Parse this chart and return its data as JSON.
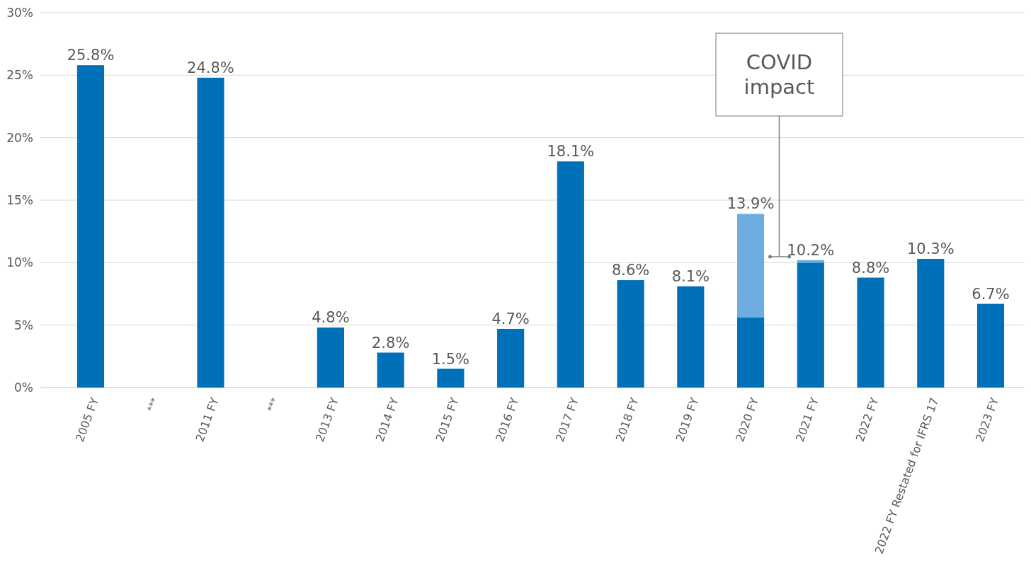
{
  "chart_data": {
    "type": "bar",
    "stacked": true,
    "categories": [
      "2005 FY",
      "***",
      "2011 FY",
      "***",
      "2013 FY",
      "2014 FY",
      "2015 FY",
      "2016 FY",
      "2017 FY",
      "2018 FY",
      "2019 FY",
      "2020 FY",
      "2021 FY",
      "2022 FY",
      "2022 FY Restated for IFRS 17",
      "2023 FY"
    ],
    "series": [
      {
        "color": "#0070b8",
        "values": [
          25.8,
          null,
          24.8,
          null,
          4.8,
          2.8,
          1.5,
          4.7,
          18.1,
          8.6,
          8.1,
          5.6,
          10.0,
          8.8,
          10.3,
          6.7
        ]
      },
      {
        "color": "#6fade0",
        "values": [
          null,
          null,
          null,
          null,
          null,
          null,
          null,
          null,
          null,
          null,
          null,
          8.3,
          0.2,
          null,
          null,
          null
        ]
      }
    ],
    "totals": [
      "25.8%",
      null,
      "24.8%",
      null,
      "4.8%",
      "2.8%",
      "1.5%",
      "4.7%",
      "18.1%",
      "8.6%",
      "8.1%",
      "13.9%",
      "10.2%",
      "8.8%",
      "10.3%",
      "6.7%"
    ],
    "ylim": [
      0,
      30
    ],
    "yticks": [
      {
        "value": 0,
        "label": "0%"
      },
      {
        "value": 5,
        "label": "5%"
      },
      {
        "value": 10,
        "label": "10%"
      },
      {
        "value": 15,
        "label": "15%"
      },
      {
        "value": 20,
        "label": "20%"
      },
      {
        "value": 25,
        "label": "25%"
      },
      {
        "value": 30,
        "label": "30%"
      }
    ],
    "grid": "y",
    "annotations": [
      "COVID impact"
    ]
  }
}
